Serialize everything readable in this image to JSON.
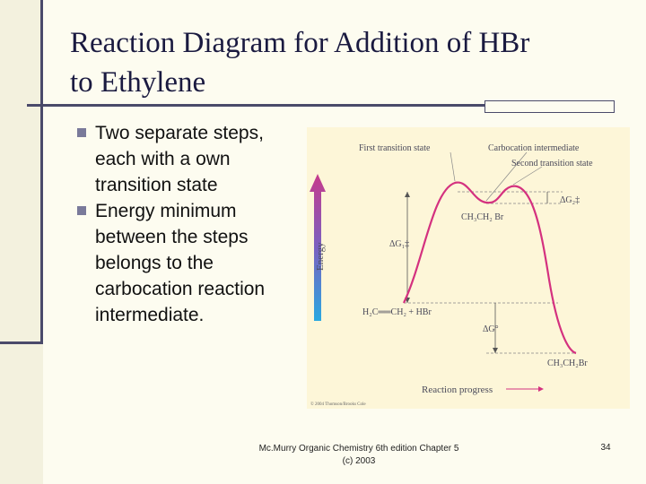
{
  "slide": {
    "title_line1": "Reaction Diagram for Addition of HBr",
    "title_line2": "to Ethylene",
    "bullets": [
      "Two separate steps, each with a own transition state",
      "Energy minimum between the steps belongs to the carbocation reaction intermediate."
    ],
    "footer_line1": "Mc.Murry Organic Chemistry 6th edition Chapter 5",
    "footer_line2": "(c) 2003",
    "page_number": "34"
  },
  "diagram": {
    "energy_axis_label": "Energy",
    "progress_label": "Reaction progress",
    "first_ts_label": "First transition state",
    "carbocation_label": "Carbocation intermediate",
    "second_ts_label": "Second transition state",
    "intermediate_species": "CH₃CH₂ Br",
    "reactants": "H₂C══CH₂ + HBr",
    "product": "CH₃CH₂Br",
    "dg1": "ΔG₁‡",
    "dg2": "ΔG₂‡",
    "dg_overall": "ΔG°",
    "copyright": "© 2004 Thomson/Brooks Cole",
    "colors": {
      "curve": "#d4317f",
      "arrow_top": "#c63a8c",
      "arrow_bottom": "#2aa8e0",
      "label": "#4a4a5a"
    }
  }
}
